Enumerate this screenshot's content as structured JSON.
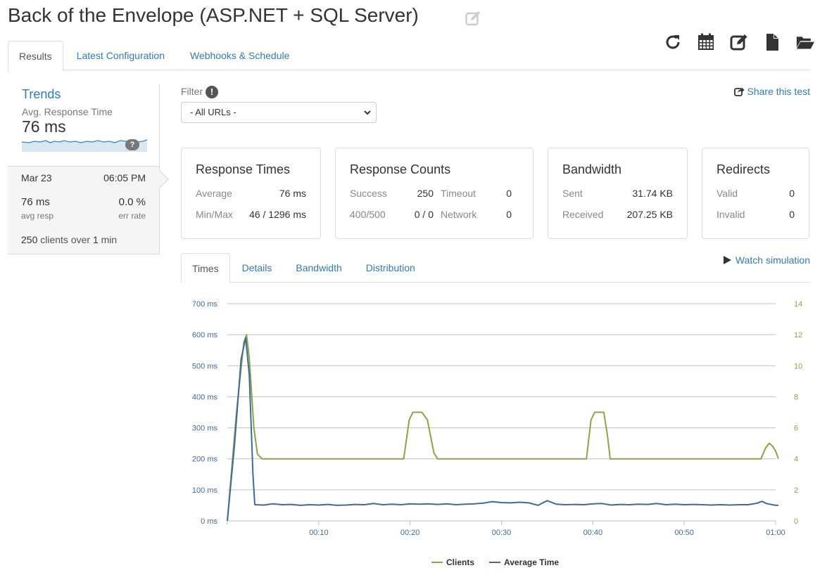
{
  "page": {
    "title": "Back of the Envelope (ASP.NET + SQL Server)"
  },
  "toolbar": {
    "icons": [
      "refresh-icon",
      "calendar-icon",
      "edit-icon",
      "file-icon",
      "folder-open-icon"
    ]
  },
  "tabs": [
    {
      "label": "Results",
      "active": true
    },
    {
      "label": "Latest Configuration",
      "active": false
    },
    {
      "label": "Webhooks & Schedule",
      "active": false
    }
  ],
  "trends": {
    "title": "Trends",
    "subtitle": "Avg. Response Time",
    "value": "76 ms",
    "help": "?",
    "snapshot": {
      "date": "Mar 23",
      "time": "06:05 PM",
      "avg_resp": "76 ms",
      "avg_resp_label": "avg resp",
      "err_rate": "0.0 %",
      "err_rate_label": "err rate",
      "clients_count": "250",
      "clients_text": "clients over",
      "duration_count": "1",
      "duration_unit": "min"
    }
  },
  "filter": {
    "label": "Filter",
    "help": "!",
    "selected": "- All URLs -"
  },
  "share": {
    "label": "Share this test"
  },
  "cards": {
    "response_times": {
      "title": "Response Times",
      "average_label": "Average",
      "average_value": "76 ms",
      "minmax_label": "Min/Max",
      "minmax_value": "46 / 1296 ms"
    },
    "response_counts": {
      "title": "Response Counts",
      "success_label": "Success",
      "success_value": "250",
      "timeout_label": "Timeout",
      "timeout_value": "0",
      "errors_label": "400/500",
      "errors_value": "0 / 0",
      "network_label": "Network",
      "network_value": "0"
    },
    "bandwidth": {
      "title": "Bandwidth",
      "sent_label": "Sent",
      "sent_value": "31.74 KB",
      "received_label": "Received",
      "received_value": "207.25 KB"
    },
    "redirects": {
      "title": "Redirects",
      "valid_label": "Valid",
      "valid_value": "0",
      "invalid_label": "Invalid",
      "invalid_value": "0"
    }
  },
  "chart_tabs": [
    {
      "label": "Times",
      "active": true
    },
    {
      "label": "Details",
      "active": false
    },
    {
      "label": "Bandwidth",
      "active": false
    },
    {
      "label": "Distribution",
      "active": false
    }
  ],
  "watch": {
    "label": "Watch simulation"
  },
  "colors": {
    "link": "#337ab7",
    "clients": "#8ba448",
    "avg_time": "#40699e"
  },
  "chart_data": {
    "type": "line",
    "x_ticks": [
      "00:10",
      "00:20",
      "00:30",
      "00:40",
      "00:50",
      "01:00"
    ],
    "x_range": [
      0,
      60
    ],
    "y_left_ticks": [
      "700 ms",
      "600 ms",
      "500 ms",
      "400 ms",
      "300 ms",
      "200 ms",
      "100 ms",
      "0 ms"
    ],
    "y_left_range": [
      0,
      700
    ],
    "y_right_ticks": [
      "14",
      "12",
      "10",
      "8",
      "6",
      "4",
      "2",
      "0"
    ],
    "y_right_range": [
      0,
      14
    ],
    "grid": true,
    "legend_position": "bottom-center",
    "series": [
      {
        "name": "Clients",
        "axis": "right",
        "points": [
          [
            0,
            0
          ],
          [
            1,
            7
          ],
          [
            1.8,
            11.5
          ],
          [
            2.1,
            12
          ],
          [
            2.4,
            10.5
          ],
          [
            2.9,
            6
          ],
          [
            3.3,
            4.3
          ],
          [
            3.8,
            4
          ],
          [
            10,
            4
          ],
          [
            19.3,
            4
          ],
          [
            19.9,
            6.5
          ],
          [
            20.3,
            7
          ],
          [
            21.3,
            7
          ],
          [
            21.9,
            6.5
          ],
          [
            22.6,
            4.4
          ],
          [
            23,
            4
          ],
          [
            39.3,
            4
          ],
          [
            39.8,
            6.5
          ],
          [
            40.2,
            7
          ],
          [
            41.2,
            7
          ],
          [
            41.6,
            5.5
          ],
          [
            41.9,
            4
          ],
          [
            50,
            4
          ],
          [
            58.4,
            4
          ],
          [
            58.9,
            4.7
          ],
          [
            59.3,
            5
          ],
          [
            59.7,
            4.8
          ],
          [
            60,
            4.5
          ],
          [
            60.3,
            4
          ]
        ]
      },
      {
        "name": "Average Time",
        "axis": "left",
        "points": [
          [
            0,
            0
          ],
          [
            0.8,
            250
          ],
          [
            1.5,
            520
          ],
          [
            2,
            590
          ],
          [
            2.4,
            470
          ],
          [
            2.8,
            150
          ],
          [
            3,
            52
          ],
          [
            4,
            51
          ],
          [
            5,
            55
          ],
          [
            6,
            52
          ],
          [
            7,
            53
          ],
          [
            8,
            50
          ],
          [
            9,
            52
          ],
          [
            10,
            51
          ],
          [
            11,
            53
          ],
          [
            12,
            50
          ],
          [
            13,
            51
          ],
          [
            14,
            53
          ],
          [
            15,
            52
          ],
          [
            16,
            56
          ],
          [
            17,
            52
          ],
          [
            18,
            54
          ],
          [
            19,
            52
          ],
          [
            20,
            55
          ],
          [
            21,
            54
          ],
          [
            22,
            55
          ],
          [
            23,
            53
          ],
          [
            24,
            55
          ],
          [
            25,
            52
          ],
          [
            26,
            54
          ],
          [
            27,
            55
          ],
          [
            28,
            57
          ],
          [
            29,
            62
          ],
          [
            30,
            59
          ],
          [
            31,
            58
          ],
          [
            32,
            60
          ],
          [
            33,
            58
          ],
          [
            34,
            50
          ],
          [
            35,
            65
          ],
          [
            36,
            54
          ],
          [
            37,
            52
          ],
          [
            38,
            53
          ],
          [
            39,
            52
          ],
          [
            40,
            55
          ],
          [
            41,
            56
          ],
          [
            42,
            51
          ],
          [
            43,
            53
          ],
          [
            44,
            52
          ],
          [
            45,
            54
          ],
          [
            46,
            53
          ],
          [
            47,
            56
          ],
          [
            48,
            52
          ],
          [
            49,
            54
          ],
          [
            50,
            52
          ],
          [
            51,
            53
          ],
          [
            52,
            52
          ],
          [
            53,
            51
          ],
          [
            54,
            52
          ],
          [
            55,
            51
          ],
          [
            56,
            52
          ],
          [
            57,
            52
          ],
          [
            58,
            57
          ],
          [
            58.5,
            63
          ],
          [
            59,
            56
          ],
          [
            60,
            50
          ],
          [
            60.3,
            50
          ]
        ]
      }
    ]
  }
}
